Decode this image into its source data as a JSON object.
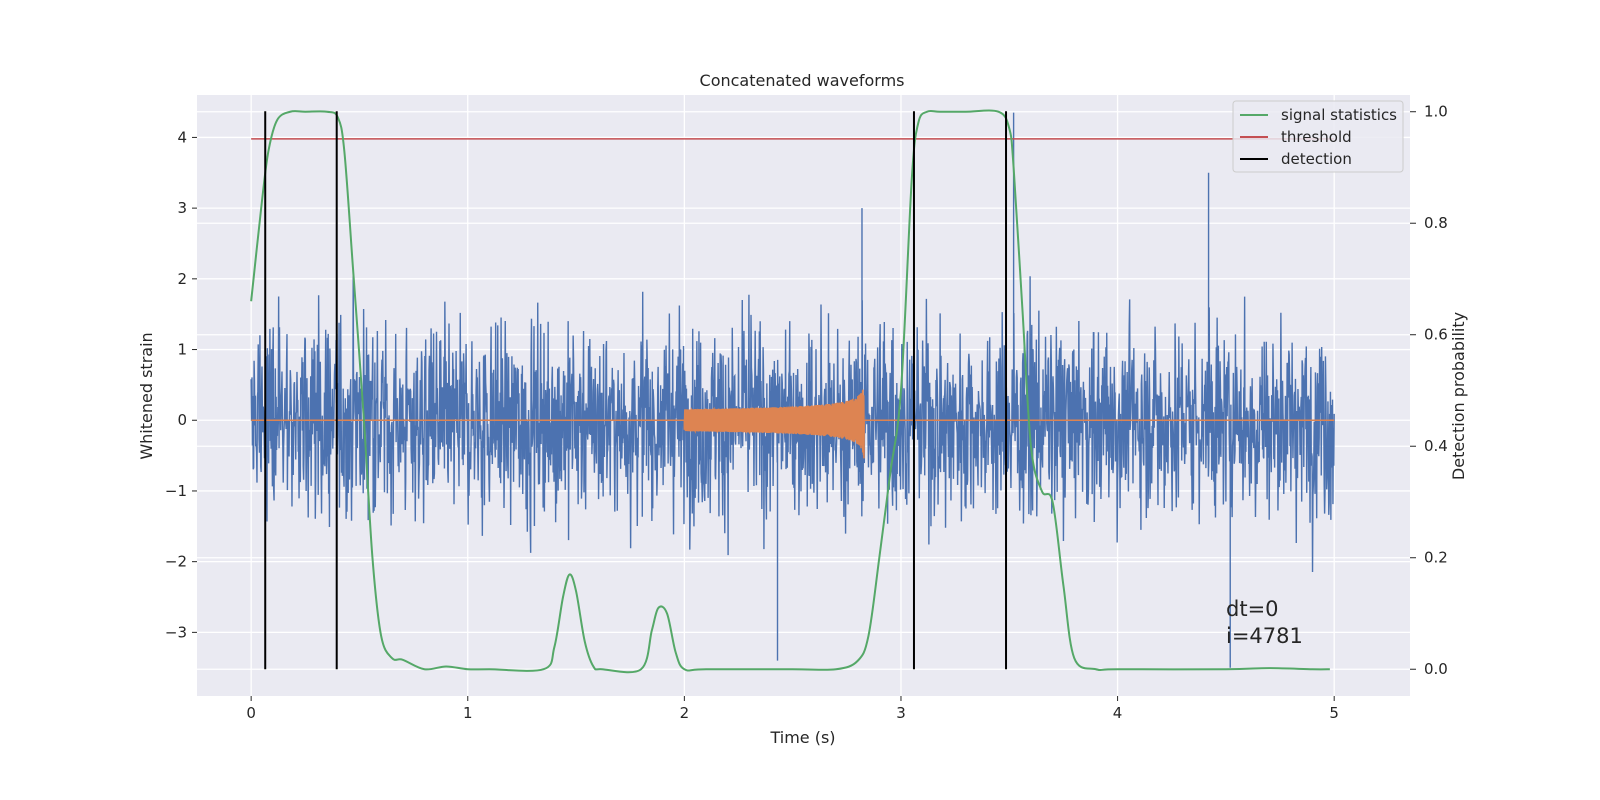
{
  "chart_data": {
    "type": "line",
    "title": "Concatenated waveforms",
    "xlabel": "Time (s)",
    "ylabel": "Whitened strain",
    "y2label": "Detection probability",
    "xlim": [
      -0.25,
      5.35
    ],
    "ylim": [
      -3.9,
      4.6
    ],
    "y2lim": [
      -0.048,
      1.03
    ],
    "xticks": [
      0,
      1,
      2,
      3,
      4,
      5
    ],
    "yticks": [
      -3,
      -2,
      -1,
      0,
      1,
      2,
      3,
      4
    ],
    "y2ticks": [
      0.0,
      0.2,
      0.4,
      0.6,
      0.8,
      1.0
    ],
    "xtick_labels": [
      "0",
      "1",
      "2",
      "3",
      "4",
      "5"
    ],
    "ytick_labels": [
      "−3",
      "−2",
      "−1",
      "0",
      "1",
      "2",
      "3",
      "4"
    ],
    "y2tick_labels": [
      "0.0",
      "0.2",
      "0.4",
      "0.6",
      "0.8",
      "1.0"
    ],
    "grid": true,
    "legend": {
      "position": "top-right",
      "entries": [
        {
          "label": "signal statistics",
          "color": "#55a868"
        },
        {
          "label": "threshold",
          "color": "#c44e52"
        },
        {
          "label": "detection",
          "color": "#000000"
        }
      ]
    },
    "series": [
      {
        "name": "whitened strain noise",
        "color": "#4c72b0",
        "axis": "left",
        "x_range": [
          0,
          5
        ],
        "amplitude_envelope": {
          "typical": 1.8,
          "max": 4.35,
          "min": -3.5
        }
      },
      {
        "name": "injected chirp",
        "color": "#dd8452",
        "axis": "left",
        "chirp_start": 2.0,
        "chirp_end": 2.83,
        "peak_amplitude": 0.62
      },
      {
        "name": "signal statistics",
        "color": "#55a868",
        "axis": "right",
        "x": [
          0.0,
          0.05,
          0.08,
          0.12,
          0.18,
          0.25,
          0.35,
          0.4,
          0.43,
          0.47,
          0.52,
          0.56,
          0.6,
          0.65,
          0.7,
          0.8,
          0.9,
          1.0,
          1.1,
          1.35,
          1.4,
          1.44,
          1.47,
          1.5,
          1.54,
          1.58,
          1.62,
          1.8,
          1.85,
          1.88,
          1.92,
          1.96,
          2.0,
          2.1,
          2.5,
          2.7,
          2.8,
          2.85,
          2.9,
          2.95,
          3.0,
          3.05,
          3.08,
          3.12,
          3.18,
          3.3,
          3.45,
          3.5,
          3.52,
          3.56,
          3.6,
          3.65,
          3.7,
          3.75,
          3.8,
          3.9,
          4.0,
          4.5,
          4.7,
          4.9,
          4.98
        ],
        "values": [
          0.66,
          0.84,
          0.93,
          0.985,
          1.0,
          1.0,
          1.0,
          0.99,
          0.93,
          0.72,
          0.45,
          0.2,
          0.06,
          0.02,
          0.017,
          0.0,
          0.005,
          0.0,
          0.0,
          0.0,
          0.04,
          0.13,
          0.17,
          0.14,
          0.05,
          0.005,
          0.0,
          0.0,
          0.07,
          0.11,
          0.1,
          0.03,
          0.0,
          0.0,
          0.0,
          0.0,
          0.015,
          0.06,
          0.2,
          0.35,
          0.5,
          0.88,
          0.98,
          1.0,
          1.0,
          1.0,
          1.0,
          0.97,
          0.9,
          0.65,
          0.4,
          0.32,
          0.3,
          0.15,
          0.02,
          0.0,
          0.0,
          0.0,
          0.002,
          0.0,
          0.0
        ]
      },
      {
        "name": "threshold",
        "color": "#c44e52",
        "axis": "left",
        "x": [
          0,
          5
        ],
        "values": [
          3.98,
          3.98
        ]
      },
      {
        "name": "detection",
        "color": "#000000",
        "axis": "vertical-lines",
        "x": [
          0.065,
          0.395,
          3.06,
          3.485
        ]
      }
    ],
    "annotations": [
      "dt=0",
      "i=4781"
    ]
  }
}
